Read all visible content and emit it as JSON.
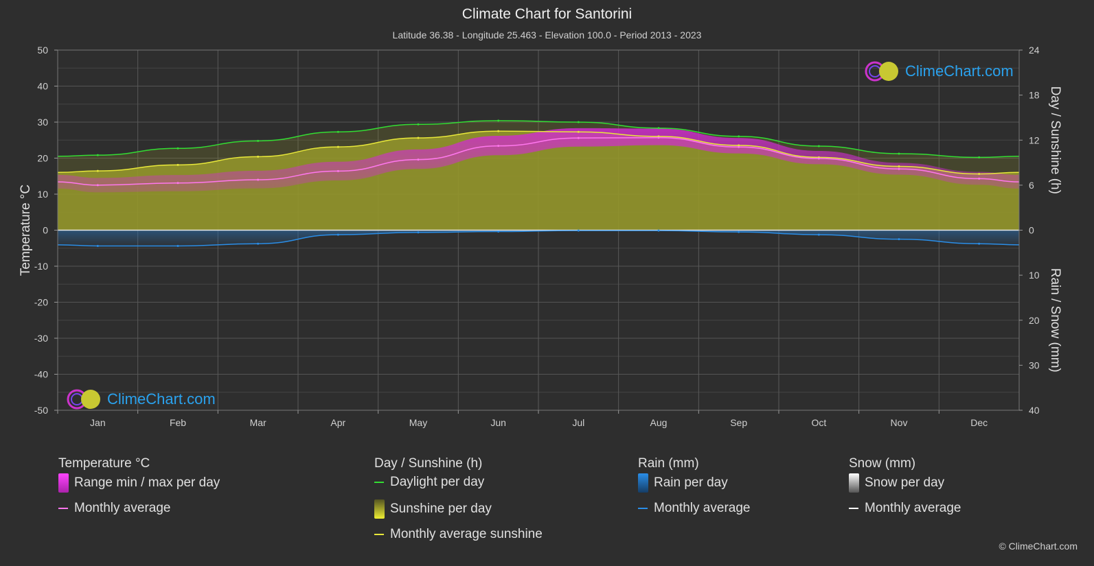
{
  "title": "Climate Chart for Santorini",
  "subtitle": "Latitude 36.38 - Longitude 25.463 - Elevation 100.0 - Period 2013 - 2023",
  "logo_text": "ClimeChart.com",
  "copyright": "© ClimeChart.com",
  "colors": {
    "background": "#2e2e2e",
    "daylight": "#33dd33",
    "sunshine_fill": "#a4a62a",
    "sunshine_avg": "#e8e83a",
    "temp_range": "#c83bc8",
    "temp_avg": "#ff77ee",
    "rain": "#2a8ee8",
    "snow": "#ffffff"
  },
  "chart_data": {
    "type": "area",
    "months": [
      "Jan",
      "Feb",
      "Mar",
      "Apr",
      "May",
      "Jun",
      "Jul",
      "Aug",
      "Sep",
      "Oct",
      "Nov",
      "Dec"
    ],
    "axes": {
      "left": {
        "label": "Temperature °C",
        "range": [
          -50,
          50
        ],
        "ticks": [
          50,
          40,
          30,
          20,
          10,
          0,
          -10,
          -20,
          -30,
          -40,
          -50
        ]
      },
      "right_top": {
        "label": "Day / Sunshine (h)",
        "range": [
          0,
          24
        ],
        "ticks": [
          24,
          18,
          12,
          6,
          0
        ]
      },
      "right_bottom": {
        "label": "Rain / Snow (mm)",
        "range": [
          0,
          40
        ],
        "ticks": [
          0,
          10,
          20,
          30,
          40
        ]
      }
    },
    "series": [
      {
        "name": "Daylight per day",
        "unit": "h",
        "values": [
          10.0,
          10.9,
          11.9,
          13.1,
          14.1,
          14.6,
          14.4,
          13.6,
          12.5,
          11.2,
          10.2,
          9.7
        ]
      },
      {
        "name": "Monthly average sunshine",
        "unit": "h",
        "values": [
          7.9,
          8.7,
          9.8,
          11.1,
          12.3,
          13.2,
          13.1,
          12.5,
          11.3,
          9.7,
          8.5,
          7.5
        ]
      },
      {
        "name": "Monthly average",
        "group": "temperature",
        "unit": "°C",
        "values": [
          12.5,
          13.1,
          14.0,
          16.4,
          19.6,
          23.4,
          25.6,
          25.7,
          23.1,
          19.9,
          17.0,
          14.3
        ]
      },
      {
        "name": "Monthly average",
        "group": "rain",
        "unit": "mm",
        "values": [
          3.5,
          3.5,
          3.0,
          1.0,
          0.5,
          0.3,
          0.1,
          0.1,
          0.4,
          1.0,
          2.0,
          3.0
        ]
      },
      {
        "name": "Monthly average",
        "group": "snow",
        "unit": "mm",
        "values": [
          0,
          0,
          0,
          0,
          0,
          0,
          0,
          0,
          0,
          0,
          0,
          0
        ]
      }
    ],
    "temperature_range": {
      "min": [
        10.5,
        10.8,
        11.6,
        13.8,
        17.0,
        20.8,
        23.2,
        23.6,
        21.3,
        18.3,
        15.4,
        12.6
      ],
      "max": [
        14.5,
        15.3,
        16.5,
        19.0,
        22.4,
        26.2,
        28.3,
        28.2,
        25.6,
        22.0,
        18.7,
        16.2
      ]
    },
    "grid": true,
    "legend_position": "bottom"
  },
  "legend": [
    {
      "heading": "Temperature °C",
      "items": [
        {
          "label": "Range min / max per day",
          "swatch": "box",
          "color": "#d633d6"
        },
        {
          "label": "Monthly average",
          "swatch": "line",
          "color": "#ff77ee"
        }
      ]
    },
    {
      "heading": "Day / Sunshine (h)",
      "items": [
        {
          "label": "Daylight per day",
          "swatch": "line",
          "color": "#33dd33"
        },
        {
          "label": "Sunshine per day",
          "swatch": "box",
          "color": "#c8c832"
        },
        {
          "label": "Monthly average sunshine",
          "swatch": "line",
          "color": "#e8e83a"
        }
      ]
    },
    {
      "heading": "Rain (mm)",
      "items": [
        {
          "label": "Rain per day",
          "swatch": "box",
          "color": "#2a8ee8"
        },
        {
          "label": "Monthly average",
          "swatch": "line",
          "color": "#2a8ee8"
        }
      ]
    },
    {
      "heading": "Snow (mm)",
      "items": [
        {
          "label": "Snow per day",
          "swatch": "box",
          "color": "#dddddd"
        },
        {
          "label": "Monthly average",
          "swatch": "line",
          "color": "#ffffff"
        }
      ]
    }
  ]
}
